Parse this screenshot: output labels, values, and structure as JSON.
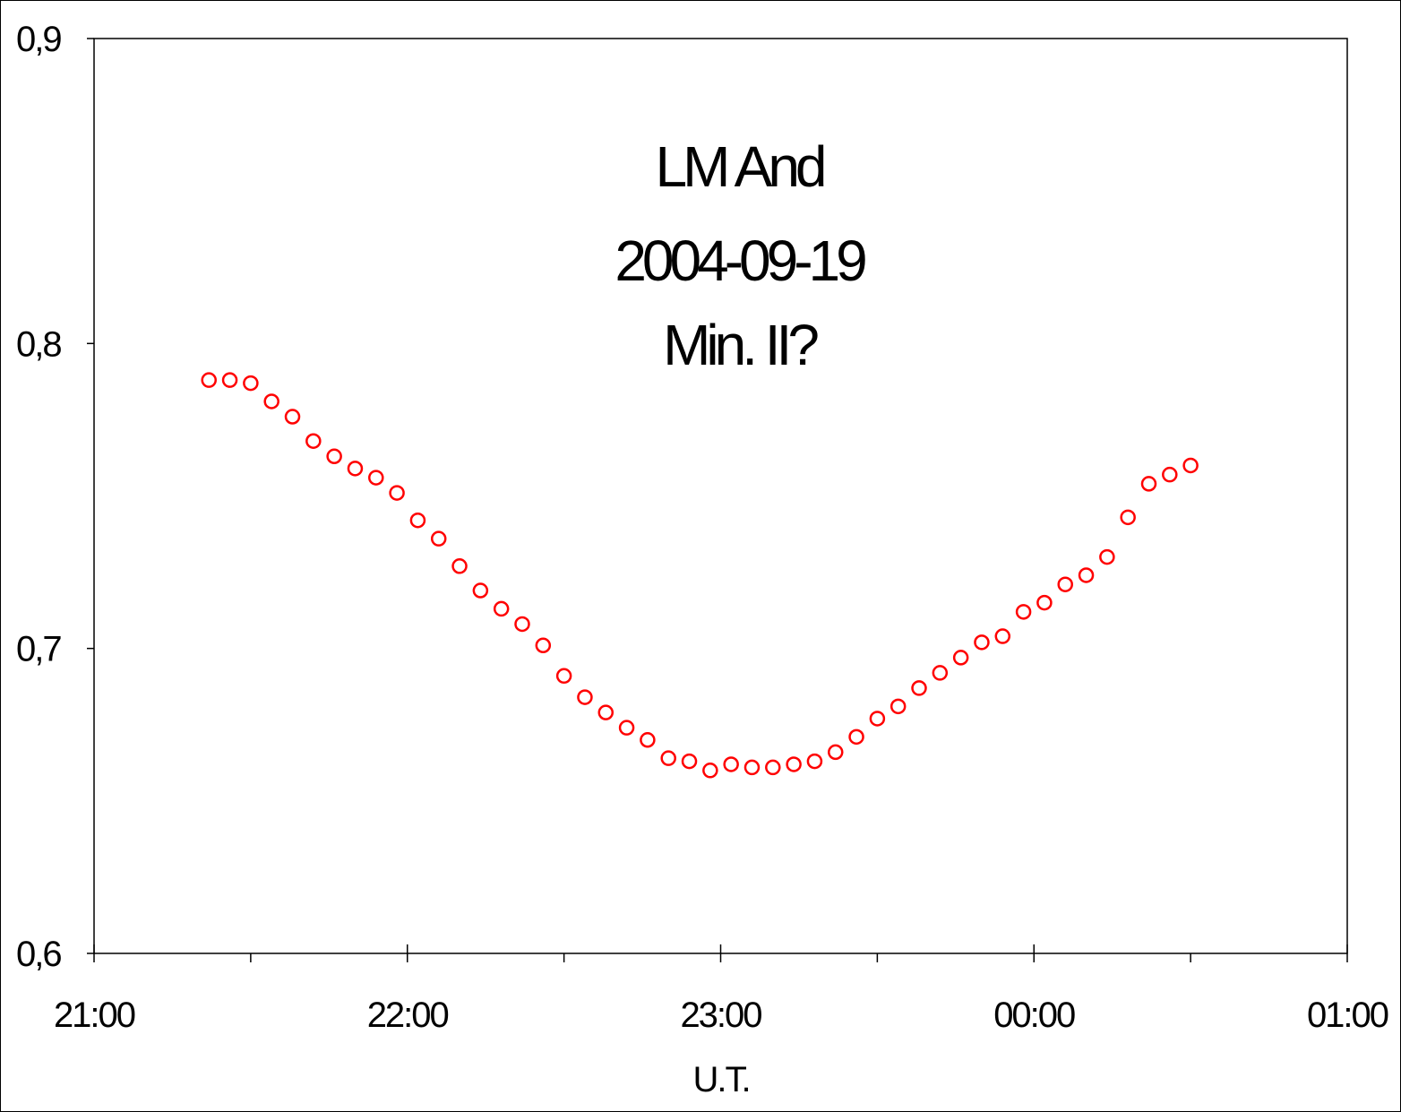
{
  "chart_data": {
    "type": "scatter",
    "title_lines": [
      "LM And",
      "2004-09-19",
      "Min. II?"
    ],
    "xlabel": "U.T.",
    "ylabel": "",
    "xlim": [
      "21:00",
      "01:00"
    ],
    "ylim": [
      0.6,
      0.9
    ],
    "x_ticks": [
      "21:00",
      "22:00",
      "23:00",
      "00:00",
      "01:00"
    ],
    "y_ticks": [
      "0,6",
      "0,7",
      "0,8",
      "0,9"
    ],
    "grid": false,
    "legend": "none",
    "marker": "open-circle",
    "color": "#ff0000",
    "series": [
      {
        "x": [
          "21:22",
          "21:26",
          "21:30",
          "21:34",
          "21:38",
          "21:42",
          "21:46",
          "21:50",
          "21:54",
          "21:58",
          "22:02",
          "22:06",
          "22:10",
          "22:14",
          "22:18",
          "22:22",
          "22:26",
          "22:30",
          "22:34",
          "22:38",
          "22:42",
          "22:46",
          "22:50",
          "22:54",
          "22:58",
          "23:02",
          "23:06",
          "23:10",
          "23:14",
          "23:18",
          "23:22",
          "23:26",
          "23:30",
          "23:34",
          "23:38",
          "23:42",
          "23:46",
          "23:50",
          "23:54",
          "23:58",
          "00:02",
          "00:06",
          "00:10",
          "00:14",
          "00:18",
          "00:22",
          "00:26",
          "00:30"
        ],
        "y": [
          0.788,
          0.788,
          0.787,
          0.781,
          0.776,
          0.768,
          0.763,
          0.759,
          0.756,
          0.751,
          0.742,
          0.736,
          0.727,
          0.719,
          0.713,
          0.708,
          0.701,
          0.691,
          0.684,
          0.679,
          0.674,
          0.67,
          0.664,
          0.663,
          0.66,
          0.662,
          0.661,
          0.661,
          0.662,
          0.663,
          0.666,
          0.671,
          0.677,
          0.681,
          0.687,
          0.692,
          0.697,
          0.702,
          0.704,
          0.712,
          0.715,
          0.721,
          0.724,
          0.73,
          0.743,
          0.754,
          0.757,
          0.76
        ]
      }
    ]
  }
}
